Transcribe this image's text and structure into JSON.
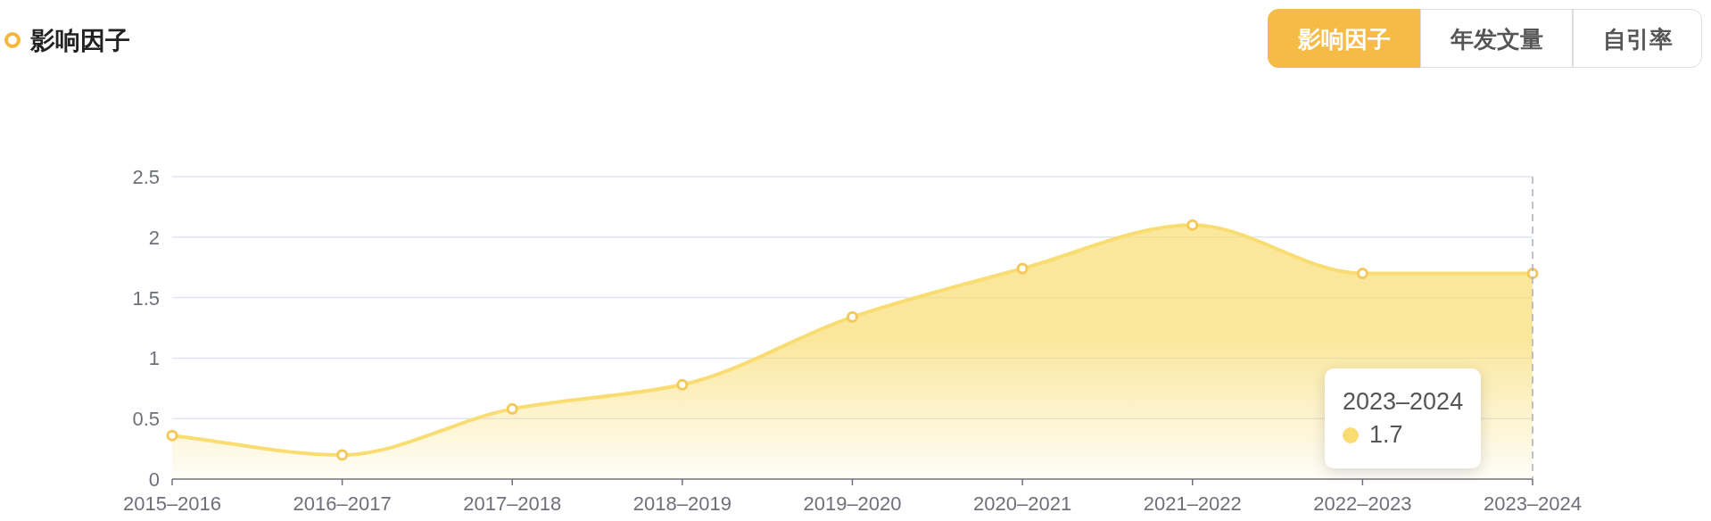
{
  "chart_data": {
    "type": "area",
    "title": "影响因子",
    "categories": [
      "2015–2016",
      "2016–2017",
      "2017–2018",
      "2018–2019",
      "2019–2020",
      "2020–2021",
      "2021–2022",
      "2022–2023",
      "2023–2024"
    ],
    "series": [
      {
        "color": "#f9dd72",
        "values": [
          0.36,
          0.2,
          0.58,
          0.78,
          1.34,
          1.74,
          2.1,
          1.7,
          1.7
        ]
      }
    ],
    "ylim": [
      0,
      2.5
    ],
    "yticks": [
      0,
      0.5,
      1,
      1.5,
      2,
      2.5
    ],
    "grid": "y",
    "marker": "circle",
    "line_style": "solid",
    "ref_lines": [
      {
        "axis": "x",
        "value": "2023–2024",
        "color": "#a9adbd",
        "line_style": "dashed"
      }
    ],
    "annotations": [
      "影响因子",
      "年发文量",
      "自引率",
      "2023–2024",
      "1.7"
    ]
  }
}
